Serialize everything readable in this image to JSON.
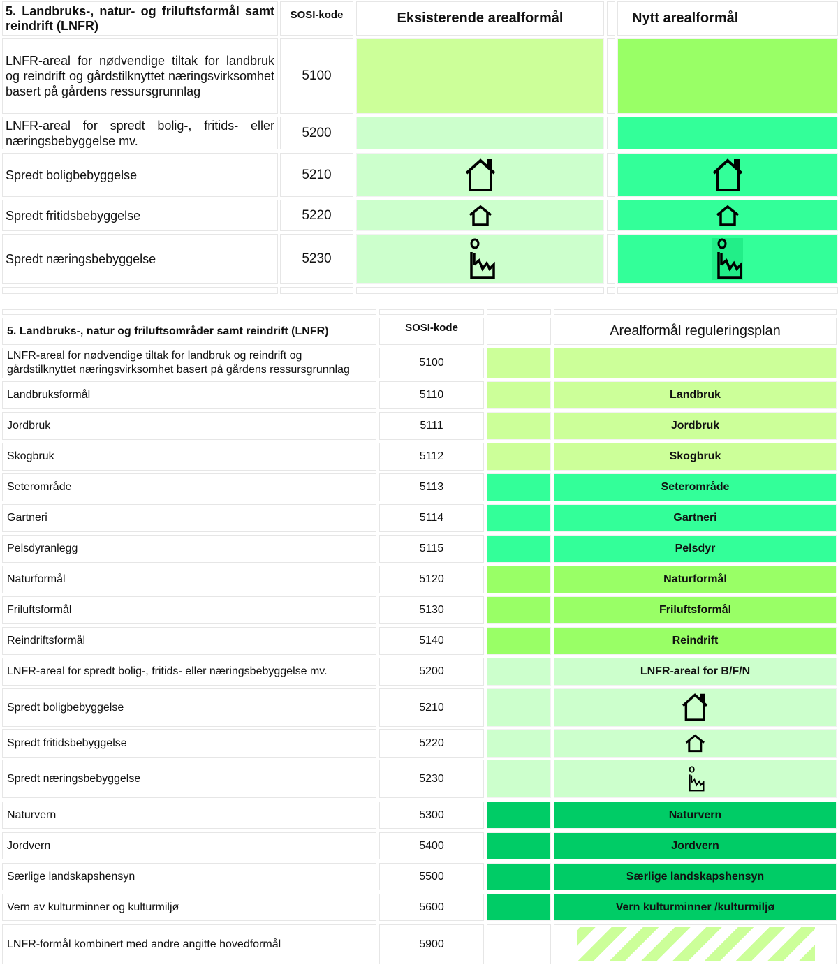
{
  "colors": {
    "light_lime": "#ccff99",
    "lime": "#99ff66",
    "pale_green": "#ccffcc",
    "mint": "#33ff99",
    "green": "#00cc66"
  },
  "top_table": {
    "header": {
      "title": "5. Landbruks-, natur- og friluftsformål samt reindrift (LNFR)",
      "sosi": "SOSI-kode",
      "existing": "Eksisterende arealformål",
      "new": "Nytt arealformål"
    },
    "rows": [
      {
        "label": "LNFR-areal for nødvendige tiltak for landbruk og reindrift og gårdstilknyttet næringsvirksomhet basert på gårdens ressursgrunnlag",
        "code": "5100",
        "existing_color": "#ccff99",
        "new_color": "#99ff66",
        "icon": ""
      },
      {
        "label": "LNFR-areal for spredt bolig-, fritids- eller næringsbebyggelse mv.",
        "code": "5200",
        "existing_color": "#ccffcc",
        "new_color": "#33ff99",
        "icon": ""
      },
      {
        "label": "Spredt boligbebyggelse",
        "code": "5210",
        "existing_color": "#ccffcc",
        "new_color": "#33ff99",
        "icon": "house-chimney"
      },
      {
        "label": "Spredt fritidsbebyggelse",
        "code": "5220",
        "existing_color": "#ccffcc",
        "new_color": "#33ff99",
        "icon": "house-small"
      },
      {
        "label": "Spredt næringsbebyggelse",
        "code": "5230",
        "existing_color": "#ccffcc",
        "new_color": "#33ff99",
        "icon": "factory"
      }
    ]
  },
  "bottom_table": {
    "header": {
      "title": "5. Landbruks-, natur og friluftsområder samt reindrift (LNFR)",
      "sosi": "SOSI-kode",
      "plan": "Arealformål reguleringsplan"
    },
    "rows": [
      {
        "label": "LNFR-areal for nødvendige tiltak for landbruk og reindrift og gårdstilknyttet næringsvirksomhet basert på gårdens ressursgrunnlag",
        "code": "5100",
        "color": "#ccff99",
        "text": "",
        "icon": ""
      },
      {
        "label": "Landbruksformål",
        "code": "5110",
        "color": "#ccff99",
        "text": "Landbruk",
        "icon": ""
      },
      {
        "label": "Jordbruk",
        "code": "5111",
        "color": "#ccff99",
        "text": "Jordbruk",
        "icon": ""
      },
      {
        "label": "Skogbruk",
        "code": "5112",
        "color": "#ccff99",
        "text": "Skogbruk",
        "icon": ""
      },
      {
        "label": "Seterområde",
        "code": "5113",
        "color": "#33ff99",
        "text": "Seterområde",
        "icon": ""
      },
      {
        "label": "Gartneri",
        "code": "5114",
        "color": "#33ff99",
        "text": "Gartneri",
        "icon": ""
      },
      {
        "label": "Pelsdyranlegg",
        "code": "5115",
        "color": "#33ff99",
        "text": "Pelsdyr",
        "icon": ""
      },
      {
        "label": "Naturformål",
        "code": "5120",
        "color": "#99ff66",
        "text": "Naturformål",
        "icon": ""
      },
      {
        "label": "Friluftsformål",
        "code": "5130",
        "color": "#99ff66",
        "text": "Friluftsformål",
        "icon": ""
      },
      {
        "label": "Reindriftsformål",
        "code": "5140",
        "color": "#99ff66",
        "text": "Reindrift",
        "icon": ""
      },
      {
        "label": "LNFR-areal for spredt bolig-, fritids- eller næringsbebyggelse mv.",
        "code": "5200",
        "color": "#ccffcc",
        "text": "LNFR-areal for B/F/N",
        "icon": ""
      },
      {
        "label": "Spredt boligbebyggelse",
        "code": "5210",
        "color": "#ccffcc",
        "text": "",
        "icon": "house-chimney"
      },
      {
        "label": "Spredt fritidsbebyggelse",
        "code": "5220",
        "color": "#ccffcc",
        "text": "",
        "icon": "house-small"
      },
      {
        "label": "Spredt næringsbebyggelse",
        "code": "5230",
        "color": "#ccffcc",
        "text": "",
        "icon": "factory"
      },
      {
        "label": "Naturvern",
        "code": "5300",
        "color": "#00cc66",
        "text": "Naturvern",
        "icon": ""
      },
      {
        "label": "Jordvern",
        "code": "5400",
        "color": "#00cc66",
        "text": "Jordvern",
        "icon": ""
      },
      {
        "label": "Særlige landskapshensyn",
        "code": "5500",
        "color": "#00cc66",
        "text": "Særlige landskapshensyn",
        "icon": ""
      },
      {
        "label": "Vern av kulturminner og kulturmiljø",
        "code": "5600",
        "color": "#00cc66",
        "text": "Vern kulturminner /kulturmiljø",
        "icon": ""
      },
      {
        "label": "LNFR-formål kombinert med andre angitte hovedformål",
        "code": "5900",
        "color": "#ffffff",
        "text": "",
        "icon": "hatch"
      }
    ]
  }
}
